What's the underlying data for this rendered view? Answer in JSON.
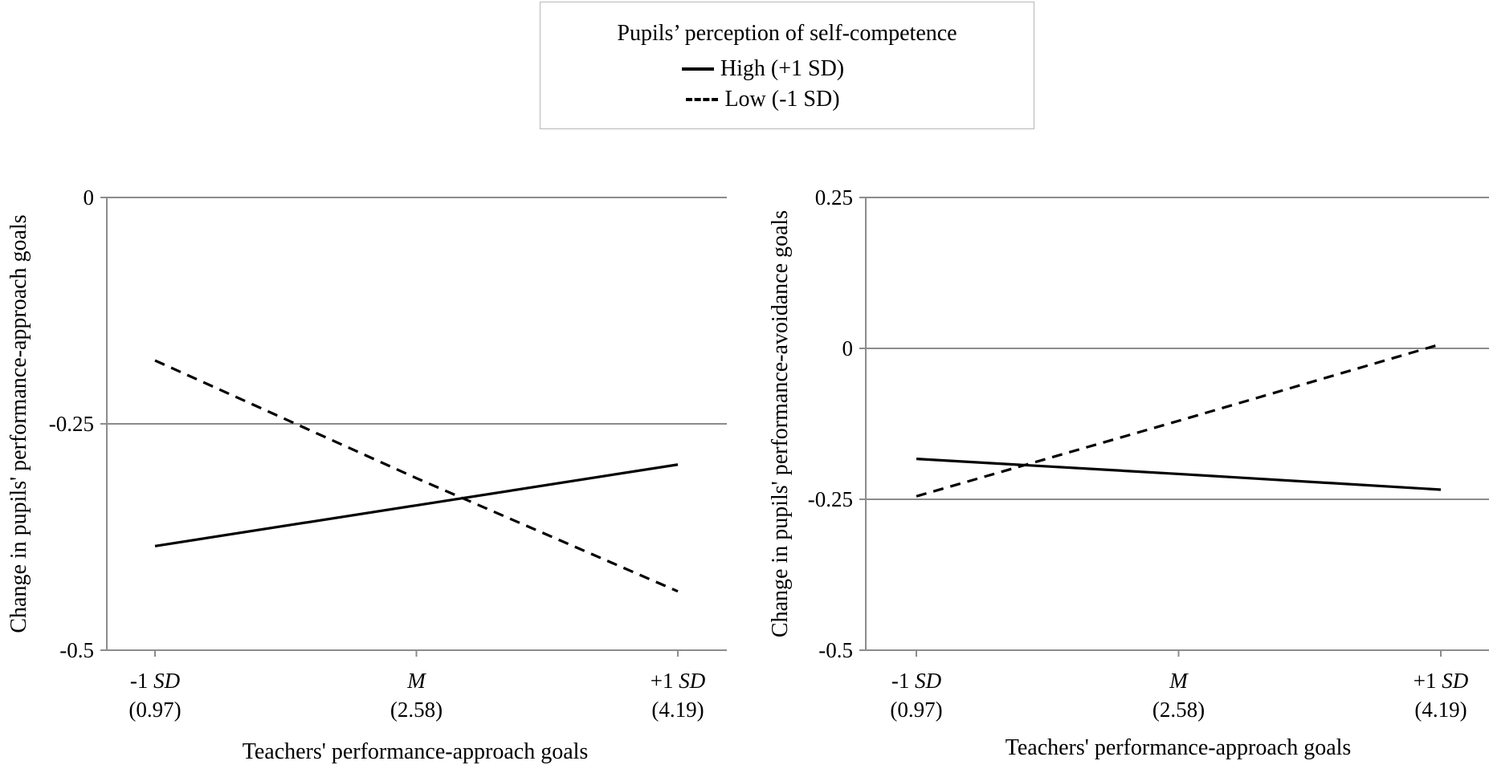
{
  "legend": {
    "title": "Pupils’ perception of self-competence",
    "items": [
      {
        "label": "High (+1 SD)",
        "style": "solid",
        "color": "#000000"
      },
      {
        "label": "Low (-1 SD)",
        "style": "dashed",
        "color": "#000000"
      }
    ]
  },
  "chart_data": [
    {
      "type": "line",
      "categories": [
        {
          "main": "-1",
          "italic": "SD",
          "value_label": "(0.97)"
        },
        {
          "main": "",
          "italic": "M",
          "value_label": "(2.58)"
        },
        {
          "main": "+1",
          "italic": "SD",
          "value_label": "(4.19)"
        }
      ],
      "xlabel": "Teachers' performance-approach goals",
      "ylabel": "Change in pupils' performance-approach goals",
      "ylim": [
        -0.5,
        0
      ],
      "yticks": [
        0,
        -0.25,
        -0.5
      ],
      "ytick_labels": [
        "0",
        "-0.25",
        "-0.5"
      ],
      "grid": true,
      "series": [
        {
          "name": "High (+1 SD)",
          "style": "solid",
          "color": "#000000",
          "values": [
            -0.385,
            -0.34,
            -0.295
          ]
        },
        {
          "name": "Low (-1 SD)",
          "style": "dashed",
          "color": "#000000",
          "values": [
            -0.18,
            -0.31,
            -0.435
          ]
        }
      ]
    },
    {
      "type": "line",
      "categories": [
        {
          "main": "-1",
          "italic": "SD",
          "value_label": "(0.97)"
        },
        {
          "main": "",
          "italic": "M",
          "value_label": "(2.58)"
        },
        {
          "main": "+1",
          "italic": "SD",
          "value_label": "(4.19)"
        }
      ],
      "xlabel": "Teachers' performance-approach goals",
      "ylabel": "Change in pupils' performance-avoidance goals",
      "ylim": [
        -0.5,
        0.25
      ],
      "yticks": [
        0.25,
        0,
        -0.25,
        -0.5
      ],
      "ytick_labels": [
        "0.25",
        "0",
        "-0.25",
        "-0.5"
      ],
      "grid": true,
      "series": [
        {
          "name": "High (+1 SD)",
          "style": "solid",
          "color": "#000000",
          "values": [
            -0.183,
            -0.208,
            -0.234
          ]
        },
        {
          "name": "Low (-1 SD)",
          "style": "dashed",
          "color": "#000000",
          "values": [
            -0.245,
            -0.12,
            0.007
          ]
        }
      ]
    }
  ]
}
